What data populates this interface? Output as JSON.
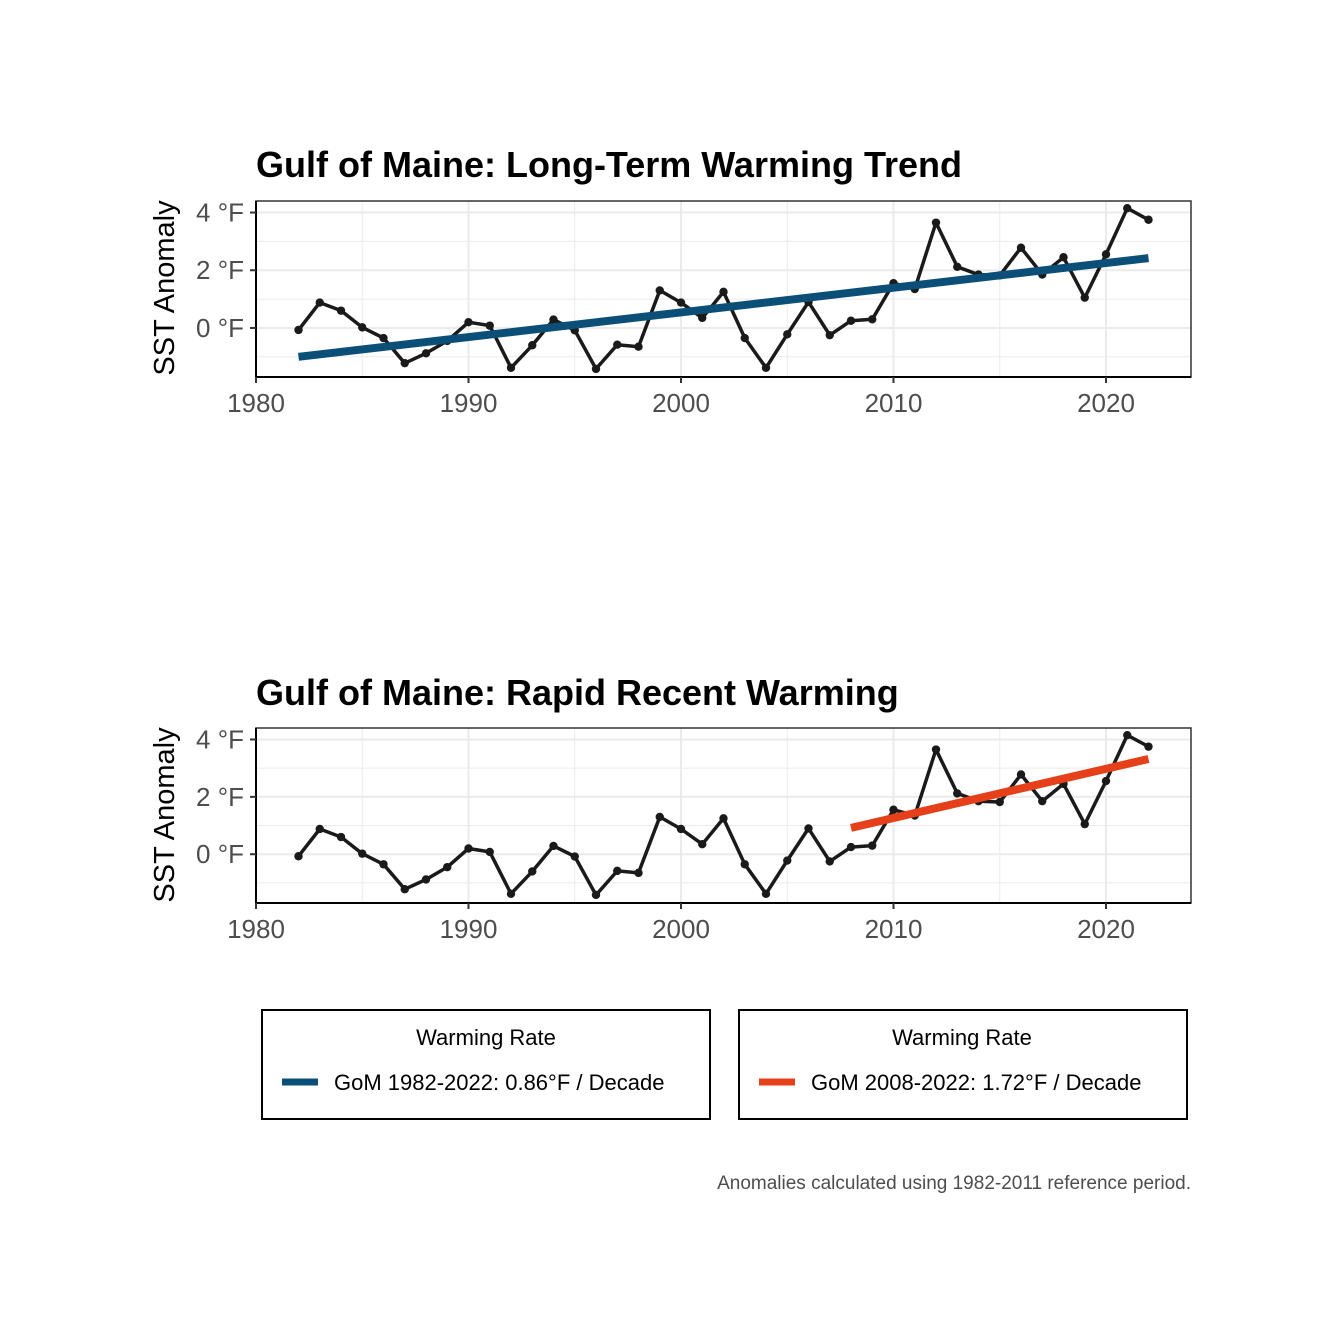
{
  "caption": "Anomalies calculated using 1982-2011 reference period.",
  "colors": {
    "observed": "#1a1a1a",
    "long_term_trend": "#0b4f78",
    "recent_trend": "#e5401a",
    "grid": "#ebebeb",
    "panel_border": "#333333"
  },
  "chart_data": [
    {
      "type": "line",
      "title": "Gulf of Maine: Long-Term Warming Trend",
      "xlabel": "",
      "ylabel": "SST Anomaly",
      "xlim": [
        1980,
        2024
      ],
      "ylim": [
        -1.7,
        4.4
      ],
      "x_ticks": [
        1980,
        1990,
        2000,
        2010,
        2020
      ],
      "y_ticks": [
        0,
        2,
        4
      ],
      "y_tick_labels": [
        "0 °F",
        "2 °F",
        "4 °F"
      ],
      "grid": true,
      "series": [
        {
          "kind": "points-line",
          "color": "#1a1a1a",
          "x": [
            1982,
            1983,
            1984,
            1985,
            1986,
            1987,
            1988,
            1989,
            1990,
            1991,
            1992,
            1993,
            1994,
            1995,
            1996,
            1997,
            1998,
            1999,
            2000,
            2001,
            2002,
            2003,
            2004,
            2005,
            2006,
            2007,
            2008,
            2009,
            2010,
            2011,
            2012,
            2013,
            2014,
            2015,
            2016,
            2017,
            2018,
            2019,
            2020,
            2021,
            2022
          ],
          "y": [
            -0.07,
            0.88,
            0.6,
            0.02,
            -0.35,
            -1.22,
            -0.88,
            -0.45,
            0.2,
            0.08,
            -1.38,
            -0.6,
            0.29,
            -0.08,
            -1.42,
            -0.58,
            -0.65,
            1.3,
            0.88,
            0.35,
            1.25,
            -0.35,
            -1.38,
            -0.22,
            0.9,
            -0.25,
            0.25,
            0.3,
            1.55,
            1.35,
            3.65,
            2.12,
            1.85,
            1.82,
            2.78,
            1.85,
            2.45,
            1.05,
            2.55,
            4.15,
            3.75
          ]
        },
        {
          "kind": "trend",
          "name": "GoM 1982-2022: 0.86°F / Decade",
          "color": "#0b4f78",
          "x": [
            1982,
            2022
          ],
          "y": [
            -1.0,
            2.42
          ]
        }
      ],
      "legend": {
        "title": "Warming Rate",
        "entries": [
          "GoM 1982-2022: 0.86°F / Decade"
        ],
        "placement": "bottom-left"
      }
    },
    {
      "type": "line",
      "title": "Gulf of Maine: Rapid Recent Warming",
      "xlabel": "",
      "ylabel": "SST Anomaly",
      "xlim": [
        1980,
        2024
      ],
      "ylim": [
        -1.7,
        4.4
      ],
      "x_ticks": [
        1980,
        1990,
        2000,
        2010,
        2020
      ],
      "y_ticks": [
        0,
        2,
        4
      ],
      "y_tick_labels": [
        "0 °F",
        "2 °F",
        "4 °F"
      ],
      "grid": true,
      "series": [
        {
          "kind": "points-line",
          "color": "#1a1a1a",
          "x": [
            1982,
            1983,
            1984,
            1985,
            1986,
            1987,
            1988,
            1989,
            1990,
            1991,
            1992,
            1993,
            1994,
            1995,
            1996,
            1997,
            1998,
            1999,
            2000,
            2001,
            2002,
            2003,
            2004,
            2005,
            2006,
            2007,
            2008,
            2009,
            2010,
            2011,
            2012,
            2013,
            2014,
            2015,
            2016,
            2017,
            2018,
            2019,
            2020,
            2021,
            2022
          ],
          "y": [
            -0.07,
            0.88,
            0.6,
            0.02,
            -0.35,
            -1.22,
            -0.88,
            -0.45,
            0.2,
            0.08,
            -1.38,
            -0.6,
            0.29,
            -0.08,
            -1.42,
            -0.58,
            -0.65,
            1.3,
            0.88,
            0.35,
            1.25,
            -0.35,
            -1.38,
            -0.22,
            0.9,
            -0.25,
            0.25,
            0.3,
            1.55,
            1.35,
            3.65,
            2.12,
            1.85,
            1.82,
            2.78,
            1.85,
            2.45,
            1.05,
            2.55,
            4.15,
            3.75
          ]
        },
        {
          "kind": "trend",
          "name": "GoM 2008-2022: 1.72°F / Decade",
          "color": "#e5401a",
          "x": [
            2008,
            2022
          ],
          "y": [
            0.92,
            3.32
          ]
        }
      ],
      "legend": {
        "title": "Warming Rate",
        "entries": [
          "GoM 2008-2022: 1.72°F / Decade"
        ],
        "placement": "bottom-right"
      }
    }
  ]
}
